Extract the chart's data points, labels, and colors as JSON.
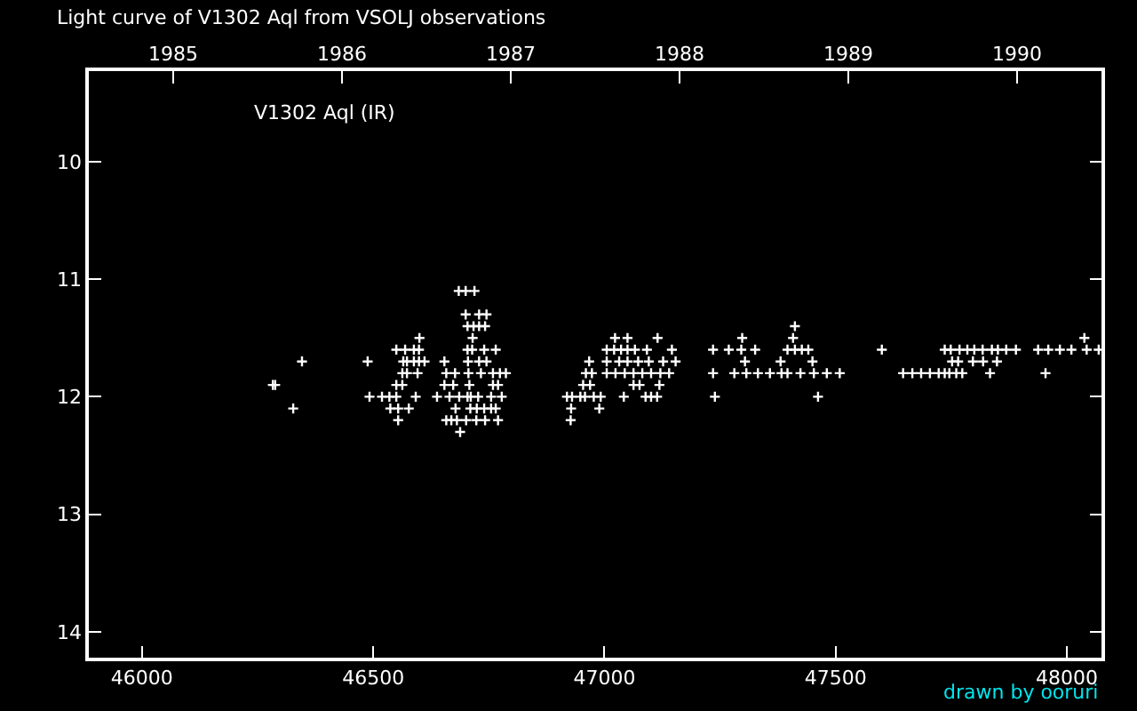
{
  "chart_data": {
    "type": "scatter",
    "title": "Light curve of V1302 Aql from VSOLJ observations",
    "annotations": [
      "V1302 Aql (IR)",
      "drawn by ooruri"
    ],
    "series": [
      {
        "color": "#ffffff",
        "x": [
          46685,
          46700,
          46719,
          46700,
          46729,
          46745,
          46704,
          46717,
          46729,
          46742,
          46600,
          46715,
          46550,
          46569,
          46588,
          46599,
          46704,
          46714,
          46740,
          46765,
          46346,
          46488,
          46565,
          46573,
          46588,
          46599,
          46611,
          46654,
          46705,
          46729,
          46745,
          46563,
          46573,
          46596,
          46658,
          46677,
          46706,
          46733,
          46759,
          46774,
          46787,
          46283,
          46288,
          46550,
          46563,
          46654,
          46673,
          46708,
          46759,
          46770,
          46492,
          46519,
          46535,
          46550,
          46592,
          46638,
          46665,
          46686,
          46704,
          46711,
          46727,
          46755,
          46778,
          46327,
          46537,
          46554,
          46577,
          46678,
          46710,
          46724,
          46740,
          46755,
          46765,
          46554,
          46658,
          46669,
          46681,
          46701,
          46723,
          46742,
          46770,
          46688,
          47412,
          47023,
          47050,
          47115,
          47298,
          47408,
          47005,
          47021,
          47036,
          47050,
          47066,
          47092,
          47146,
          47235,
          47269,
          47296,
          47326,
          47396,
          47412,
          47427,
          47441,
          47600,
          46967,
          47005,
          47032,
          47050,
          47073,
          47096,
          47127,
          47154,
          47304,
          47381,
          47450,
          46960,
          46973,
          47005,
          47024,
          47044,
          47063,
          47082,
          47101,
          47121,
          47140,
          47235,
          47281,
          47307,
          47332,
          47358,
          47383,
          47396,
          47424,
          47453,
          47481,
          47509,
          46954,
          46969,
          47063,
          47076,
          47119,
          46919,
          46930,
          46948,
          46958,
          46977,
          46992,
          47042,
          47089,
          47101,
          47114,
          47239,
          47462,
          46928,
          46989,
          46927,
          48038,
          47736,
          47749,
          47768,
          47785,
          47800,
          47818,
          47838,
          47851,
          47869,
          47890,
          47938,
          47960,
          47985,
          48010,
          48043,
          48069,
          47752,
          47765,
          47797,
          47819,
          47849,
          47646,
          47666,
          47685,
          47704,
          47723,
          47736,
          47746,
          47761,
          47774,
          47834,
          47954
        ],
        "values": [
          11.1,
          11.1,
          11.1,
          11.3,
          11.3,
          11.3,
          11.4,
          11.4,
          11.4,
          11.4,
          11.5,
          11.5,
          11.6,
          11.6,
          11.6,
          11.6,
          11.6,
          11.6,
          11.6,
          11.6,
          11.7,
          11.7,
          11.7,
          11.7,
          11.7,
          11.7,
          11.7,
          11.7,
          11.7,
          11.7,
          11.7,
          11.8,
          11.8,
          11.8,
          11.8,
          11.8,
          11.8,
          11.8,
          11.8,
          11.8,
          11.8,
          11.9,
          11.9,
          11.9,
          11.9,
          11.9,
          11.9,
          11.9,
          11.9,
          11.9,
          12.0,
          12.0,
          12.0,
          12.0,
          12.0,
          12.0,
          12.0,
          12.0,
          12.0,
          12.0,
          12.0,
          12.0,
          12.0,
          12.1,
          12.1,
          12.1,
          12.1,
          12.1,
          12.1,
          12.1,
          12.1,
          12.1,
          12.1,
          12.2,
          12.2,
          12.2,
          12.2,
          12.2,
          12.2,
          12.2,
          12.2,
          12.3,
          11.4,
          11.5,
          11.5,
          11.5,
          11.5,
          11.5,
          11.6,
          11.6,
          11.6,
          11.6,
          11.6,
          11.6,
          11.6,
          11.6,
          11.6,
          11.6,
          11.6,
          11.6,
          11.6,
          11.6,
          11.6,
          11.6,
          11.7,
          11.7,
          11.7,
          11.7,
          11.7,
          11.7,
          11.7,
          11.7,
          11.7,
          11.7,
          11.7,
          11.8,
          11.8,
          11.8,
          11.8,
          11.8,
          11.8,
          11.8,
          11.8,
          11.8,
          11.8,
          11.8,
          11.8,
          11.8,
          11.8,
          11.8,
          11.8,
          11.8,
          11.8,
          11.8,
          11.8,
          11.8,
          11.9,
          11.9,
          11.9,
          11.9,
          11.9,
          12.0,
          12.0,
          12.0,
          12.0,
          12.0,
          12.0,
          12.0,
          12.0,
          12.0,
          12.0,
          12.0,
          12.0,
          12.1,
          12.1,
          12.2,
          11.5,
          11.6,
          11.6,
          11.6,
          11.6,
          11.6,
          11.6,
          11.6,
          11.6,
          11.6,
          11.6,
          11.6,
          11.6,
          11.6,
          11.6,
          11.6,
          11.6,
          11.7,
          11.7,
          11.7,
          11.7,
          11.7,
          11.8,
          11.8,
          11.8,
          11.8,
          11.8,
          11.8,
          11.8,
          11.8,
          11.8,
          11.8,
          11.8
        ]
      }
    ],
    "xlim": [
      45885,
      48075
    ],
    "xticks": [
      46000,
      46500,
      47000,
      47500,
      48000
    ],
    "x2lim": [
      1984.5,
      1990.5
    ],
    "x2ticks": [
      1985,
      1986,
      1987,
      1988,
      1989,
      1990
    ],
    "ylim": [
      14.22,
      9.23
    ],
    "yticks": [
      10,
      11,
      12,
      13,
      14
    ],
    "marker": "cross",
    "grid": false
  }
}
